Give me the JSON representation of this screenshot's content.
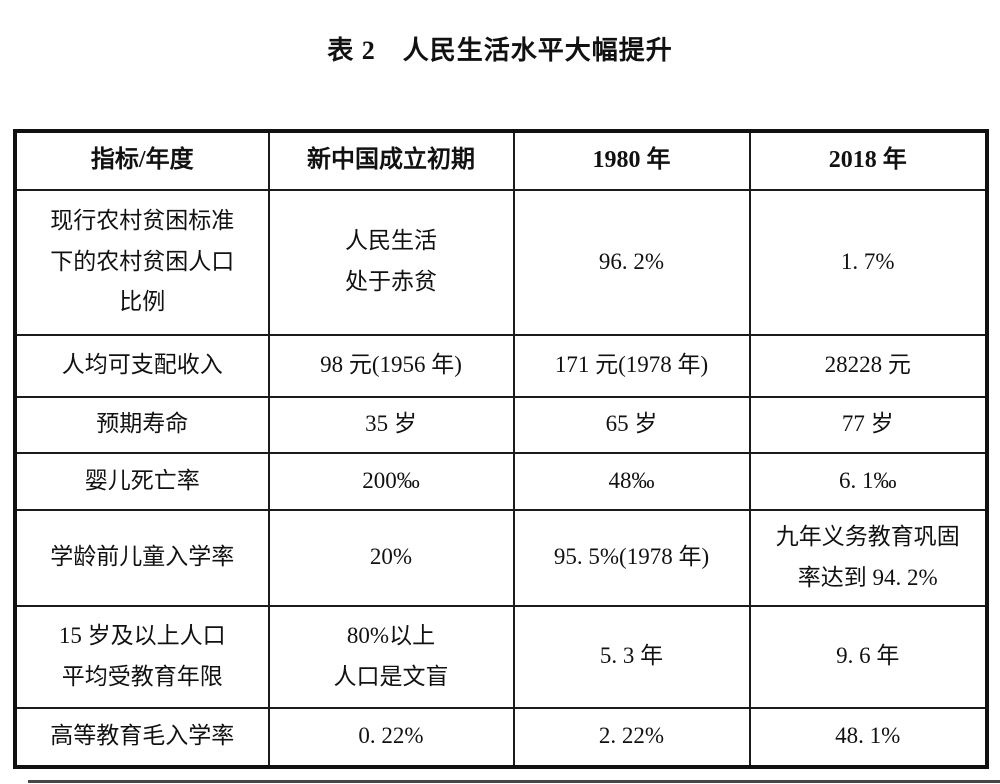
{
  "title": "表 2　人民生活水平大幅提升",
  "table": {
    "headers": [
      "指标/年度",
      "新中国成立初期",
      "1980 年",
      "2018 年"
    ],
    "rows": [
      [
        "现行农村贫困标准\n下的农村贫困人口\n比例",
        "人民生活\n处于赤贫",
        "96. 2%",
        "1. 7%"
      ],
      [
        "人均可支配收入",
        "98 元(1956 年)",
        "171 元(1978 年)",
        "28228 元"
      ],
      [
        "预期寿命",
        "35 岁",
        "65 岁",
        "77 岁"
      ],
      [
        "婴儿死亡率",
        "200‰",
        "48‰",
        "6. 1‰"
      ],
      [
        "学龄前儿童入学率",
        "20%",
        "95. 5%(1978 年)",
        "九年义务教育巩固\n率达到 94. 2%"
      ],
      [
        "15 岁及以上人口\n平均受教育年限",
        "80%以上\n人口是文盲",
        "5. 3 年",
        "9. 6 年"
      ],
      [
        "高等教育毛入学率",
        "0. 22%",
        "2. 22%",
        "48. 1%"
      ]
    ]
  },
  "colors": {
    "text": "#111111",
    "border": "#1b1b1b",
    "background": "#ffffff",
    "bottom_artifact": "#474747"
  }
}
